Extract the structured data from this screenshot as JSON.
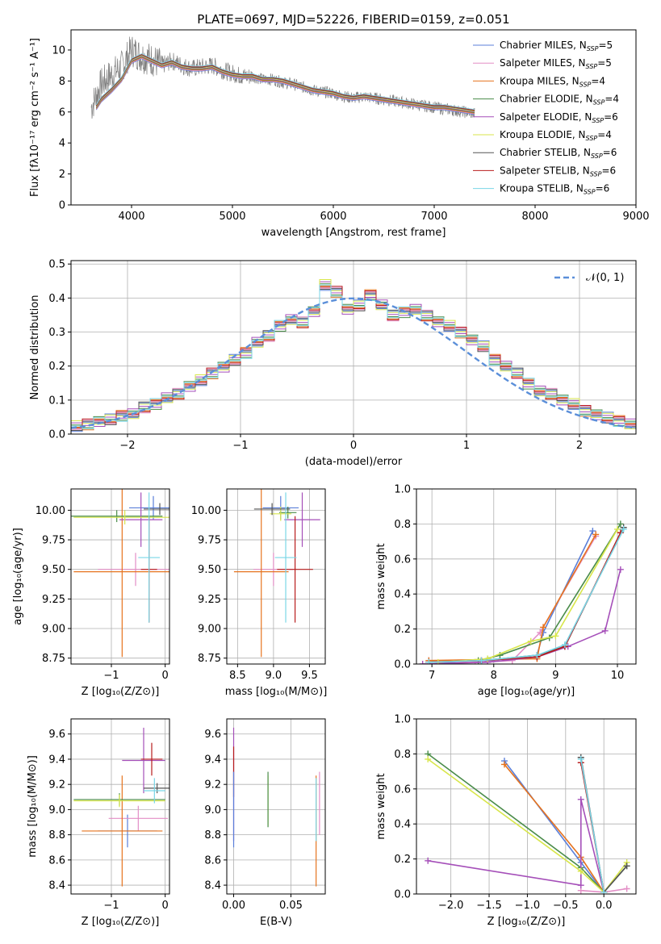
{
  "figure_title": "PLATE=0697, MJD=52226, FIBERID=0159, z=0.051",
  "palette": [
    "#5b7fd9",
    "#e38ec6",
    "#e6731e",
    "#4a8c4a",
    "#a54fb9",
    "#d8e64b",
    "#555555",
    "#b81d1d",
    "#79d6e6"
  ],
  "chart_data": [
    {
      "id": "spectrum",
      "type": "line",
      "title": "PLATE=0697, MJD=52226, FIBERID=0159, z=0.051",
      "xlabel": "wavelength [Angstrom, rest frame]",
      "ylabel": "Flux [fλ10⁻¹⁷ erg cm⁻² s⁻¹ A⁻¹]",
      "xlim": [
        3400,
        9000
      ],
      "ylim": [
        0,
        11.3
      ],
      "xticks": [
        4000,
        5000,
        6000,
        7000,
        8000,
        9000
      ],
      "yticks": [
        0,
        2,
        4,
        6,
        8,
        10
      ],
      "data_series": {
        "name": "data",
        "color": "#808080",
        "x": [
          3600,
          3700,
          3800,
          3900,
          4000,
          4100,
          4200,
          4300,
          4400,
          4500,
          4600,
          4700,
          4800,
          4900,
          5000,
          5100,
          5200,
          5300,
          5400,
          5500,
          5600,
          5700,
          5800,
          5900,
          6000,
          6100,
          6200,
          6300,
          6400,
          6500,
          6600,
          6700,
          6800,
          6900,
          7000,
          7100,
          7200,
          7300,
          7400
        ],
        "y": [
          6.3,
          7.8,
          8.4,
          8.9,
          10.0,
          9.6,
          9.4,
          9.0,
          9.3,
          9.0,
          8.8,
          8.9,
          9.0,
          8.7,
          8.5,
          8.3,
          8.3,
          8.1,
          8.1,
          7.9,
          7.8,
          7.6,
          7.4,
          7.3,
          7.2,
          7.0,
          6.9,
          7.0,
          6.9,
          6.8,
          6.7,
          6.6,
          6.5,
          6.4,
          6.3,
          6.2,
          6.1,
          6.0,
          5.9
        ]
      },
      "model_x": [
        3650,
        3700,
        3800,
        3900,
        4000,
        4100,
        4200,
        4300,
        4400,
        4500,
        4600,
        4700,
        4800,
        4900,
        5000,
        5100,
        5200,
        5300,
        5400,
        5500,
        5600,
        5700,
        5800,
        5900,
        6000,
        6100,
        6200,
        6300,
        6400,
        6500,
        6600,
        6700,
        6800,
        6900,
        7000,
        7100,
        7200,
        7300,
        7400
      ],
      "model_y": [
        6.3,
        6.8,
        7.4,
        8.1,
        9.3,
        9.6,
        9.3,
        9.0,
        9.2,
        8.9,
        8.8,
        8.8,
        8.9,
        8.6,
        8.4,
        8.3,
        8.3,
        8.1,
        8.1,
        8.0,
        7.8,
        7.6,
        7.4,
        7.3,
        7.2,
        7.0,
        6.9,
        7.0,
        6.9,
        6.8,
        6.7,
        6.6,
        6.5,
        6.4,
        6.3,
        6.3,
        6.2,
        6.1,
        6.0
      ],
      "series": [
        {
          "name": "Chabrier MILES, N_SSP=5",
          "label": "Chabrier MILES, N",
          "nssp": "=5",
          "color": "#5b7fd9"
        },
        {
          "name": "Salpeter MILES, N_SSP=5",
          "label": "Salpeter MILES, N",
          "nssp": "=5",
          "color": "#e38ec6"
        },
        {
          "name": "Kroupa MILES, N_SSP=4",
          "label": "Kroupa MILES, N",
          "nssp": "=4",
          "color": "#e6731e"
        },
        {
          "name": "Chabrier ELODIE, N_SSP=4",
          "label": "Chabrier ELODIE, N",
          "nssp": "=4",
          "color": "#4a8c4a"
        },
        {
          "name": "Salpeter ELODIE, N_SSP=6",
          "label": "Salpeter ELODIE, N",
          "nssp": "=6",
          "color": "#a54fb9"
        },
        {
          "name": "Kroupa ELODIE, N_SSP=4",
          "label": "Kroupa ELODIE, N",
          "nssp": "=4",
          "color": "#d8e64b"
        },
        {
          "name": "Chabrier STELIB, N_SSP=6",
          "label": "Chabrier STELIB, N",
          "nssp": "=6",
          "color": "#555555"
        },
        {
          "name": "Salpeter STELIB, N_SSP=6",
          "label": "Salpeter STELIB, N",
          "nssp": "=6",
          "color": "#b81d1d"
        },
        {
          "name": "Kroupa STELIB, N_SSP=6",
          "label": "Kroupa STELIB, N",
          "nssp": "=6",
          "color": "#79d6e6"
        }
      ],
      "legend": "top-right",
      "grid": false
    },
    {
      "id": "residuals",
      "type": "line",
      "xlabel": "(data-model)/error",
      "ylabel": "Normed distribution",
      "xlim": [
        -2.5,
        2.5
      ],
      "ylim": [
        0,
        0.51
      ],
      "xticks": [
        -2,
        -1,
        0,
        1,
        2
      ],
      "yticks": [
        0.0,
        0.1,
        0.2,
        0.3,
        0.4,
        0.5
      ],
      "bin_edges": [
        -2.5,
        -2.4,
        -2.3,
        -2.2,
        -2.1,
        -2.0,
        -1.9,
        -1.8,
        -1.7,
        -1.6,
        -1.5,
        -1.4,
        -1.3,
        -1.2,
        -1.1,
        -1.0,
        -0.9,
        -0.8,
        -0.7,
        -0.6,
        -0.5,
        -0.4,
        -0.3,
        -0.2,
        -0.1,
        0.0,
        0.1,
        0.2,
        0.3,
        0.4,
        0.5,
        0.6,
        0.7,
        0.8,
        0.9,
        1.0,
        1.1,
        1.2,
        1.3,
        1.4,
        1.5,
        1.6,
        1.7,
        1.8,
        1.9,
        2.0,
        2.1,
        2.2,
        2.3,
        2.4,
        2.5
      ],
      "hist_values": [
        0.025,
        0.03,
        0.04,
        0.045,
        0.055,
        0.06,
        0.08,
        0.09,
        0.11,
        0.12,
        0.14,
        0.16,
        0.18,
        0.2,
        0.22,
        0.24,
        0.27,
        0.29,
        0.32,
        0.34,
        0.33,
        0.36,
        0.44,
        0.42,
        0.37,
        0.38,
        0.41,
        0.38,
        0.35,
        0.36,
        0.37,
        0.35,
        0.33,
        0.32,
        0.3,
        0.28,
        0.26,
        0.22,
        0.2,
        0.18,
        0.15,
        0.13,
        0.12,
        0.1,
        0.09,
        0.07,
        0.06,
        0.05,
        0.04,
        0.03
      ],
      "reference": {
        "name": "N(0,1)",
        "label": "𝒩(0, 1)",
        "color": "#5b8fd9"
      },
      "legend": "top-right",
      "grid": true
    },
    {
      "id": "age_vs_Z",
      "type": "scatter",
      "xlabel": "Z [log₁₀(Z/Z⊙)]",
      "ylabel": "age  [log₁₀(age/yr)]",
      "xlim": [
        -1.75,
        0.08
      ],
      "ylim": [
        8.7,
        10.18
      ],
      "xticks": [
        -1,
        0
      ],
      "yticks": [
        8.75,
        9.0,
        9.25,
        9.5,
        9.75,
        10.0
      ],
      "points": [
        {
          "x": -0.22,
          "y": 10.02,
          "xerr": 0.45,
          "yerr": 0.1,
          "color": "#5b7fd9"
        },
        {
          "x": -0.55,
          "y": 9.5,
          "xerr": 0.7,
          "yerr": 0.14,
          "color": "#e38ec6"
        },
        {
          "x": -0.8,
          "y": 9.48,
          "xerr": 0.9,
          "yerr": 0.72,
          "color": "#e6731e"
        },
        {
          "x": -0.9,
          "y": 9.95,
          "xerr": 0.85,
          "yerr": 0.05,
          "color": "#4a8c4a"
        },
        {
          "x": -0.45,
          "y": 9.92,
          "xerr": 0.4,
          "yerr": 0.23,
          "color": "#a54fb9"
        },
        {
          "x": -0.75,
          "y": 9.94,
          "xerr": 0.95,
          "yerr": 0.06,
          "color": "#d8e64b"
        },
        {
          "x": -0.1,
          "y": 10.01,
          "xerr": 0.3,
          "yerr": 0.05,
          "color": "#555555"
        },
        {
          "x": -0.3,
          "y": 9.5,
          "xerr": 0.15,
          "yerr": 0.45,
          "color": "#b81d1d"
        },
        {
          "x": -0.3,
          "y": 9.6,
          "xerr": 0.2,
          "yerr": 0.55,
          "color": "#79d6e6"
        }
      ],
      "grid": true
    },
    {
      "id": "age_vs_mass",
      "type": "scatter",
      "xlabel": "mass [log₁₀(M/M⊙)]",
      "ylabel": "",
      "xlim": [
        8.35,
        9.72
      ],
      "ylim": [
        8.7,
        10.18
      ],
      "xticks": [
        8.5,
        9.0,
        9.5
      ],
      "yticks": [
        8.75,
        9.0,
        9.25,
        9.5,
        9.75,
        10.0
      ],
      "points": [
        {
          "x": 9.1,
          "y": 10.02,
          "xerr": 0.25,
          "yerr": 0.1,
          "color": "#5b7fd9"
        },
        {
          "x": 9.0,
          "y": 9.5,
          "xerr": 0.28,
          "yerr": 0.14,
          "color": "#e38ec6"
        },
        {
          "x": 8.83,
          "y": 9.48,
          "xerr": 0.38,
          "yerr": 0.72,
          "color": "#e6731e"
        },
        {
          "x": 9.2,
          "y": 9.98,
          "xerr": 0.12,
          "yerr": 0.05,
          "color": "#4a8c4a"
        },
        {
          "x": 9.4,
          "y": 9.92,
          "xerr": 0.25,
          "yerr": 0.23,
          "color": "#a54fb9"
        },
        {
          "x": 9.1,
          "y": 9.97,
          "xerr": 0.15,
          "yerr": 0.06,
          "color": "#d8e64b"
        },
        {
          "x": 8.98,
          "y": 10.01,
          "xerr": 0.25,
          "yerr": 0.05,
          "color": "#555555"
        },
        {
          "x": 9.3,
          "y": 9.5,
          "xerr": 0.25,
          "yerr": 0.45,
          "color": "#b81d1d"
        },
        {
          "x": 9.17,
          "y": 9.6,
          "xerr": 0.15,
          "yerr": 0.55,
          "color": "#79d6e6"
        }
      ],
      "grid": true
    },
    {
      "id": "massweight_vs_age",
      "type": "line",
      "xlabel": "age  [log₁₀(age/yr)]",
      "ylabel": "mass weight",
      "xlim": [
        6.75,
        10.3
      ],
      "ylim": [
        0,
        1.0
      ],
      "xticks": [
        7,
        8,
        9,
        10
      ],
      "yticks": [
        0.0,
        0.2,
        0.4,
        0.6,
        0.8,
        1.0
      ],
      "series": [
        {
          "color": "#5b7fd9",
          "x": [
            6.95,
            7.7,
            8.7,
            8.8,
            9.6
          ],
          "y": [
            0.01,
            0.01,
            0.05,
            0.18,
            0.76
          ]
        },
        {
          "color": "#e38ec6",
          "x": [
            6.95,
            7.7,
            8.3,
            8.75,
            9.65
          ],
          "y": [
            0.02,
            0.01,
            0.02,
            0.18,
            0.73
          ]
        },
        {
          "color": "#e6731e",
          "x": [
            6.95,
            8.7,
            8.8,
            9.65
          ],
          "y": [
            0.02,
            0.03,
            0.21,
            0.74
          ]
        },
        {
          "color": "#4a8c4a",
          "x": [
            6.95,
            7.75,
            8.1,
            8.9,
            10.05
          ],
          "y": [
            0.01,
            0.02,
            0.05,
            0.15,
            0.8
          ]
        },
        {
          "color": "#a54fb9",
          "x": [
            6.85,
            7.9,
            8.7,
            9.2,
            9.8,
            10.05
          ],
          "y": [
            0.0,
            0.01,
            0.04,
            0.1,
            0.19,
            0.54
          ]
        },
        {
          "color": "#d8e64b",
          "x": [
            7.1,
            7.9,
            8.6,
            9.0,
            10.0
          ],
          "y": [
            0.01,
            0.03,
            0.13,
            0.16,
            0.77
          ]
        },
        {
          "color": "#555555",
          "x": [
            6.95,
            7.8,
            8.7,
            9.15,
            10.1
          ],
          "y": [
            0.01,
            0.02,
            0.05,
            0.1,
            0.78
          ]
        },
        {
          "color": "#b81d1d",
          "x": [
            6.95,
            7.8,
            8.7,
            9.15,
            10.05
          ],
          "y": [
            0.01,
            0.02,
            0.04,
            0.1,
            0.75
          ]
        },
        {
          "color": "#79d6e6",
          "x": [
            6.95,
            7.8,
            8.7,
            9.15,
            10.1
          ],
          "y": [
            0.01,
            0.02,
            0.05,
            0.11,
            0.77
          ]
        }
      ],
      "grid": true
    },
    {
      "id": "mass_vs_Z",
      "type": "scatter",
      "xlabel": "Z [log₁₀(Z/Z⊙)]",
      "ylabel": "mass [log₁₀(M/M⊙)]",
      "xlim": [
        -1.75,
        0.08
      ],
      "ylim": [
        8.33,
        9.72
      ],
      "xticks": [
        -1,
        0
      ],
      "yticks": [
        8.4,
        8.6,
        8.8,
        9.0,
        9.2,
        9.4,
        9.6
      ],
      "points": [
        {
          "x": -0.7,
          "y": 8.83,
          "xerr": 0.55,
          "yerr": 0.13,
          "color": "#5b7fd9"
        },
        {
          "x": -0.5,
          "y": 8.93,
          "xerr": 0.55,
          "yerr": 0.1,
          "color": "#e38ec6"
        },
        {
          "x": -0.8,
          "y": 8.83,
          "xerr": 0.75,
          "yerr": 0.44,
          "color": "#e6731e"
        },
        {
          "x": -0.85,
          "y": 9.08,
          "xerr": 0.85,
          "yerr": 0.05,
          "color": "#4a8c4a"
        },
        {
          "x": -0.4,
          "y": 9.39,
          "xerr": 0.4,
          "yerr": 0.26,
          "color": "#a54fb9"
        },
        {
          "x": -0.85,
          "y": 9.07,
          "xerr": 0.85,
          "yerr": 0.05,
          "color": "#d8e64b"
        },
        {
          "x": -0.15,
          "y": 9.17,
          "xerr": 0.25,
          "yerr": 0.04,
          "color": "#555555"
        },
        {
          "x": -0.25,
          "y": 9.4,
          "xerr": 0.2,
          "yerr": 0.13,
          "color": "#b81d1d"
        },
        {
          "x": -0.2,
          "y": 9.15,
          "xerr": 0.2,
          "yerr": 0.1,
          "color": "#79d6e6"
        }
      ],
      "grid": true
    },
    {
      "id": "mass_vs_EBV",
      "type": "scatter",
      "xlabel": "E(B-V)",
      "ylabel": "",
      "xlim": [
        -0.006,
        0.08
      ],
      "ylim": [
        8.33,
        9.72
      ],
      "xticks": [
        0.0,
        0.05
      ],
      "yticks": [
        8.4,
        8.6,
        8.8,
        9.0,
        9.2,
        9.4,
        9.6
      ],
      "points": [
        {
          "x": 0.0,
          "y": 9.2,
          "xerr": 0,
          "yerr": 0.45,
          "color": "#a54fb9"
        },
        {
          "x": 0.0,
          "y": 9.3,
          "xerr": 0,
          "yerr": 0.2,
          "color": "#b81d1d"
        },
        {
          "x": 0.0,
          "y": 9.0,
          "xerr": 0,
          "yerr": 0.3,
          "color": "#5b7fd9"
        },
        {
          "x": 0.03,
          "y": 9.07,
          "xerr": 0,
          "yerr": 0.2,
          "color": "#d8e64b"
        },
        {
          "x": 0.03,
          "y": 9.08,
          "xerr": 0,
          "yerr": 0.22,
          "color": "#4a8c4a"
        },
        {
          "x": 0.072,
          "y": 8.83,
          "xerr": 0,
          "yerr": 0.44,
          "color": "#e6731e"
        },
        {
          "x": 0.072,
          "y": 9.0,
          "xerr": 0,
          "yerr": 0.25,
          "color": "#79d6e6"
        },
        {
          "x": 0.075,
          "y": 9.05,
          "xerr": 0,
          "yerr": 0.25,
          "color": "#e38ec6"
        }
      ],
      "grid": true
    },
    {
      "id": "massweight_vs_Z",
      "type": "line",
      "xlabel": "Z [log₁₀(Z/Z⊙)]",
      "ylabel": "mass weight",
      "xlim": [
        -2.45,
        0.42
      ],
      "ylim": [
        0,
        1.0
      ],
      "xticks": [
        -2.0,
        -1.5,
        -1.0,
        -0.5,
        0.0
      ],
      "yticks": [
        0.0,
        0.2,
        0.4,
        0.6,
        0.8,
        1.0
      ],
      "series": [
        {
          "color": "#5b7fd9",
          "x": [
            -1.3,
            -0.3,
            0.0
          ],
          "y": [
            0.76,
            0.18,
            0.01
          ]
        },
        {
          "color": "#e38ec6",
          "x": [
            -0.3,
            0.0,
            0.3
          ],
          "y": [
            0.02,
            0.01,
            0.03
          ]
        },
        {
          "color": "#e6731e",
          "x": [
            -1.3,
            -0.3,
            0.0
          ],
          "y": [
            0.74,
            0.21,
            0.01
          ]
        },
        {
          "color": "#4a8c4a",
          "x": [
            -2.3,
            -0.3,
            0.0,
            0.3
          ],
          "y": [
            0.8,
            0.15,
            0.01,
            0.16
          ]
        },
        {
          "color": "#a54fb9",
          "x": [
            -2.3,
            -0.3,
            -0.3,
            0.0
          ],
          "y": [
            0.19,
            0.05,
            0.54,
            0.01
          ]
        },
        {
          "color": "#d8e64b",
          "x": [
            -2.3,
            -0.3,
            0.0,
            0.3
          ],
          "y": [
            0.77,
            0.13,
            0.01,
            0.18
          ]
        },
        {
          "color": "#555555",
          "x": [
            -0.3,
            0.0,
            0.3
          ],
          "y": [
            0.78,
            0.01,
            0.16
          ]
        },
        {
          "color": "#b81d1d",
          "x": [
            -0.3,
            0.0
          ],
          "y": [
            0.75,
            0.01
          ]
        },
        {
          "color": "#79d6e6",
          "x": [
            -0.3,
            0.0
          ],
          "y": [
            0.77,
            0.01
          ]
        }
      ],
      "grid": true
    }
  ]
}
